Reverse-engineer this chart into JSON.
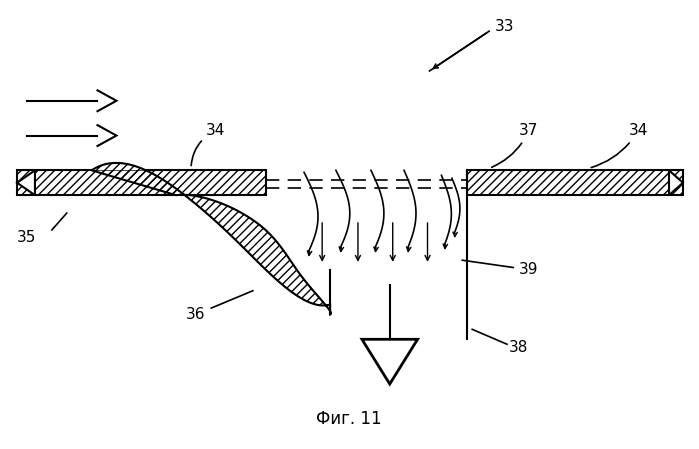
{
  "caption": "Фиг. 11",
  "bg_color": "#ffffff",
  "line_color": "#000000",
  "labels": [
    "33",
    "34",
    "34",
    "35",
    "36",
    "37",
    "38",
    "39"
  ]
}
